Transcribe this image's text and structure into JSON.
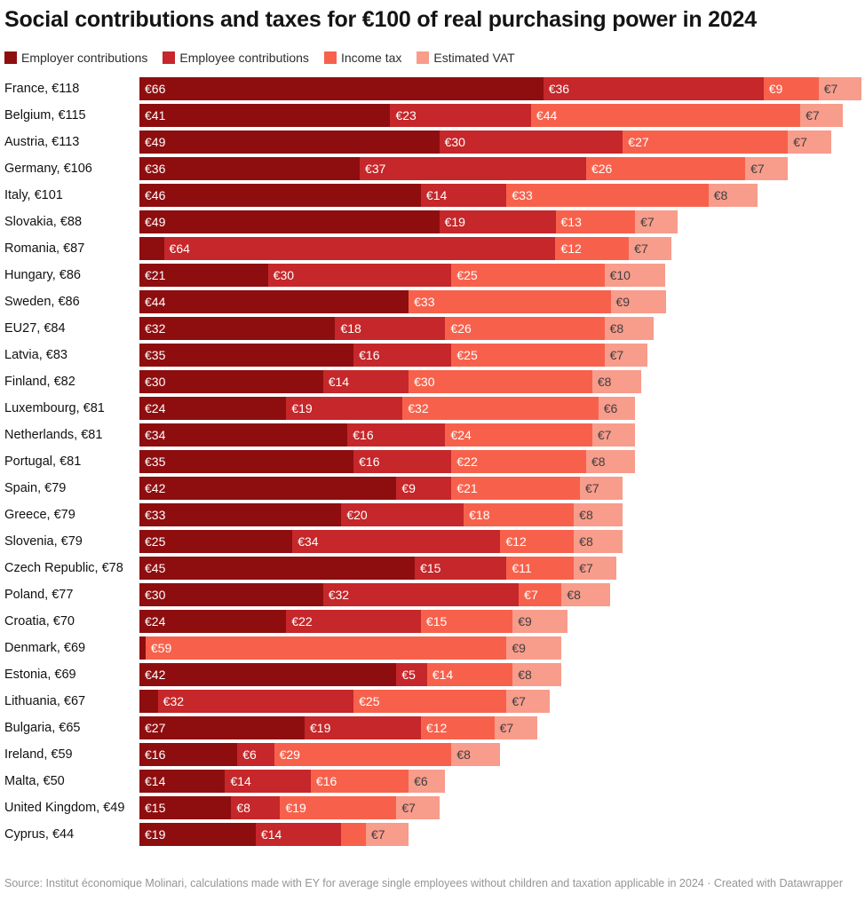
{
  "title": "Social contributions and taxes for €100 of real purchasing power in 2024",
  "legend": {
    "items": [
      {
        "label": "Employer contributions"
      },
      {
        "label": "Employee contributions"
      },
      {
        "label": "Income tax"
      },
      {
        "label": "Estimated VAT"
      }
    ]
  },
  "footer": {
    "text": "Source: Institut économique Molinari, calculations made with EY for average single employees without children and taxation applicable in 2024 · Created with Datawrapper"
  },
  "chart_data": {
    "type": "bar",
    "orientation": "horizontal",
    "stacked": true,
    "unit": "€",
    "x_max": 118,
    "min_label_value": 5,
    "legend_position": "top",
    "categories": [
      "Employer contributions",
      "Employee contributions",
      "Income tax",
      "Estimated VAT"
    ],
    "category_keys": [
      "employer-contributions",
      "employee-contributions",
      "income-tax",
      "estimated-vat"
    ],
    "colors": [
      "#8e0e10",
      "#c5272a",
      "#f7614c",
      "#f89c8b"
    ],
    "label_text_colors": [
      "#ffffff",
      "#ffffff",
      "#ffffff",
      "#3f3f3f"
    ],
    "rows": [
      {
        "label": "France, €118",
        "total": 118,
        "values": [
          66,
          36,
          9,
          7
        ]
      },
      {
        "label": "Belgium, €115",
        "total": 115,
        "values": [
          41,
          23,
          44,
          7
        ]
      },
      {
        "label": "Austria, €113",
        "total": 113,
        "values": [
          49,
          30,
          27,
          7
        ]
      },
      {
        "label": "Germany, €106",
        "total": 106,
        "values": [
          36,
          37,
          26,
          7
        ]
      },
      {
        "label": "Italy, €101",
        "total": 101,
        "values": [
          46,
          14,
          33,
          8
        ]
      },
      {
        "label": "Slovakia, €88",
        "total": 88,
        "values": [
          49,
          19,
          13,
          7
        ]
      },
      {
        "label": "Romania, €87",
        "total": 87,
        "values": [
          4,
          64,
          12,
          7
        ]
      },
      {
        "label": "Hungary, €86",
        "total": 86,
        "values": [
          21,
          30,
          25,
          10
        ]
      },
      {
        "label": "Sweden, €86",
        "total": 86,
        "values": [
          44,
          0,
          33,
          9
        ]
      },
      {
        "label": "EU27, €84",
        "total": 84,
        "values": [
          32,
          18,
          26,
          8
        ]
      },
      {
        "label": "Latvia, €83",
        "total": 83,
        "values": [
          35,
          16,
          25,
          7
        ]
      },
      {
        "label": "Finland, €82",
        "total": 82,
        "values": [
          30,
          14,
          30,
          8
        ]
      },
      {
        "label": "Luxembourg, €81",
        "total": 81,
        "values": [
          24,
          19,
          32,
          6
        ]
      },
      {
        "label": "Netherlands, €81",
        "total": 81,
        "values": [
          34,
          16,
          24,
          7
        ]
      },
      {
        "label": "Portugal, €81",
        "total": 81,
        "values": [
          35,
          16,
          22,
          8
        ]
      },
      {
        "label": "Spain, €79",
        "total": 79,
        "values": [
          42,
          9,
          21,
          7
        ]
      },
      {
        "label": "Greece, €79",
        "total": 79,
        "values": [
          33,
          20,
          18,
          8
        ]
      },
      {
        "label": "Slovenia, €79",
        "total": 79,
        "values": [
          25,
          34,
          12,
          8
        ]
      },
      {
        "label": "Czech Republic, €78",
        "total": 78,
        "values": [
          45,
          15,
          11,
          7
        ]
      },
      {
        "label": "Poland, €77",
        "total": 77,
        "values": [
          30,
          32,
          7,
          8
        ]
      },
      {
        "label": "Croatia, €70",
        "total": 70,
        "values": [
          24,
          22,
          15,
          9
        ]
      },
      {
        "label": "Denmark, €69",
        "total": 69,
        "values": [
          1,
          0,
          59,
          9
        ]
      },
      {
        "label": "Estonia, €69",
        "total": 69,
        "values": [
          42,
          5,
          14,
          8
        ]
      },
      {
        "label": "Lithuania, €67",
        "total": 67,
        "values": [
          3,
          32,
          25,
          7
        ]
      },
      {
        "label": "Bulgaria, €65",
        "total": 65,
        "values": [
          27,
          19,
          12,
          7
        ]
      },
      {
        "label": "Ireland, €59",
        "total": 59,
        "values": [
          16,
          6,
          29,
          8
        ]
      },
      {
        "label": "Malta, €50",
        "total": 50,
        "values": [
          14,
          14,
          16,
          6
        ]
      },
      {
        "label": "United Kingdom, €49",
        "total": 49,
        "values": [
          15,
          8,
          19,
          7
        ]
      },
      {
        "label": "Cyprus, €44",
        "total": 44,
        "values": [
          19,
          14,
          4,
          7
        ]
      }
    ]
  }
}
